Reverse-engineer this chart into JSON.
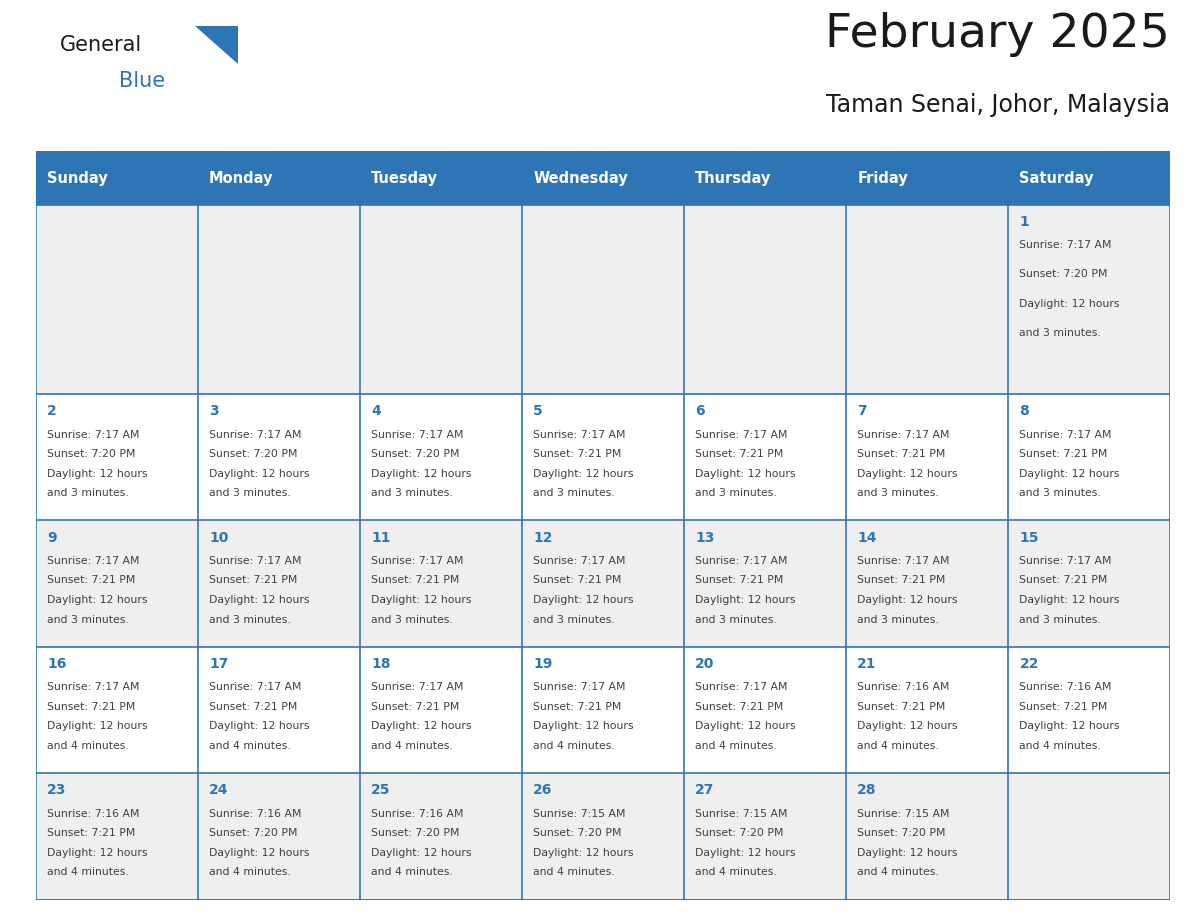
{
  "title": "February 2025",
  "subtitle": "Taman Senai, Johor, Malaysia",
  "header_bg": "#2E75B6",
  "header_text_color": "#FFFFFF",
  "cell_bg_odd": "#EFEFEF",
  "cell_bg_even": "#FFFFFF",
  "day_number_color": "#2E75B6",
  "cell_text_color": "#404040",
  "grid_line_color": "#2E75B6",
  "days_of_week": [
    "Sunday",
    "Monday",
    "Tuesday",
    "Wednesday",
    "Thursday",
    "Friday",
    "Saturday"
  ],
  "calendar": [
    [
      null,
      null,
      null,
      null,
      null,
      null,
      1
    ],
    [
      2,
      3,
      4,
      5,
      6,
      7,
      8
    ],
    [
      9,
      10,
      11,
      12,
      13,
      14,
      15
    ],
    [
      16,
      17,
      18,
      19,
      20,
      21,
      22
    ],
    [
      23,
      24,
      25,
      26,
      27,
      28,
      null
    ]
  ],
  "row_heights": [
    1.5,
    1.0,
    1.0,
    1.0,
    1.0
  ],
  "cell_data": {
    "1": {
      "sunrise": "7:17 AM",
      "sunset": "7:20 PM",
      "daylight": "12 hours and 3 minutes."
    },
    "2": {
      "sunrise": "7:17 AM",
      "sunset": "7:20 PM",
      "daylight": "12 hours and 3 minutes."
    },
    "3": {
      "sunrise": "7:17 AM",
      "sunset": "7:20 PM",
      "daylight": "12 hours and 3 minutes."
    },
    "4": {
      "sunrise": "7:17 AM",
      "sunset": "7:20 PM",
      "daylight": "12 hours and 3 minutes."
    },
    "5": {
      "sunrise": "7:17 AM",
      "sunset": "7:21 PM",
      "daylight": "12 hours and 3 minutes."
    },
    "6": {
      "sunrise": "7:17 AM",
      "sunset": "7:21 PM",
      "daylight": "12 hours and 3 minutes."
    },
    "7": {
      "sunrise": "7:17 AM",
      "sunset": "7:21 PM",
      "daylight": "12 hours and 3 minutes."
    },
    "8": {
      "sunrise": "7:17 AM",
      "sunset": "7:21 PM",
      "daylight": "12 hours and 3 minutes."
    },
    "9": {
      "sunrise": "7:17 AM",
      "sunset": "7:21 PM",
      "daylight": "12 hours and 3 minutes."
    },
    "10": {
      "sunrise": "7:17 AM",
      "sunset": "7:21 PM",
      "daylight": "12 hours and 3 minutes."
    },
    "11": {
      "sunrise": "7:17 AM",
      "sunset": "7:21 PM",
      "daylight": "12 hours and 3 minutes."
    },
    "12": {
      "sunrise": "7:17 AM",
      "sunset": "7:21 PM",
      "daylight": "12 hours and 3 minutes."
    },
    "13": {
      "sunrise": "7:17 AM",
      "sunset": "7:21 PM",
      "daylight": "12 hours and 3 minutes."
    },
    "14": {
      "sunrise": "7:17 AM",
      "sunset": "7:21 PM",
      "daylight": "12 hours and 3 minutes."
    },
    "15": {
      "sunrise": "7:17 AM",
      "sunset": "7:21 PM",
      "daylight": "12 hours and 3 minutes."
    },
    "16": {
      "sunrise": "7:17 AM",
      "sunset": "7:21 PM",
      "daylight": "12 hours and 4 minutes."
    },
    "17": {
      "sunrise": "7:17 AM",
      "sunset": "7:21 PM",
      "daylight": "12 hours and 4 minutes."
    },
    "18": {
      "sunrise": "7:17 AM",
      "sunset": "7:21 PM",
      "daylight": "12 hours and 4 minutes."
    },
    "19": {
      "sunrise": "7:17 AM",
      "sunset": "7:21 PM",
      "daylight": "12 hours and 4 minutes."
    },
    "20": {
      "sunrise": "7:17 AM",
      "sunset": "7:21 PM",
      "daylight": "12 hours and 4 minutes."
    },
    "21": {
      "sunrise": "7:16 AM",
      "sunset": "7:21 PM",
      "daylight": "12 hours and 4 minutes."
    },
    "22": {
      "sunrise": "7:16 AM",
      "sunset": "7:21 PM",
      "daylight": "12 hours and 4 minutes."
    },
    "23": {
      "sunrise": "7:16 AM",
      "sunset": "7:21 PM",
      "daylight": "12 hours and 4 minutes."
    },
    "24": {
      "sunrise": "7:16 AM",
      "sunset": "7:20 PM",
      "daylight": "12 hours and 4 minutes."
    },
    "25": {
      "sunrise": "7:16 AM",
      "sunset": "7:20 PM",
      "daylight": "12 hours and 4 minutes."
    },
    "26": {
      "sunrise": "7:15 AM",
      "sunset": "7:20 PM",
      "daylight": "12 hours and 4 minutes."
    },
    "27": {
      "sunrise": "7:15 AM",
      "sunset": "7:20 PM",
      "daylight": "12 hours and 4 minutes."
    },
    "28": {
      "sunrise": "7:15 AM",
      "sunset": "7:20 PM",
      "daylight": "12 hours and 4 minutes."
    }
  },
  "logo_text1": "General",
  "logo_text2": "Blue",
  "logo_text1_color": "#1a1a1a",
  "logo_text2_color": "#2E75B6",
  "logo_triangle_color": "#2E75B6"
}
